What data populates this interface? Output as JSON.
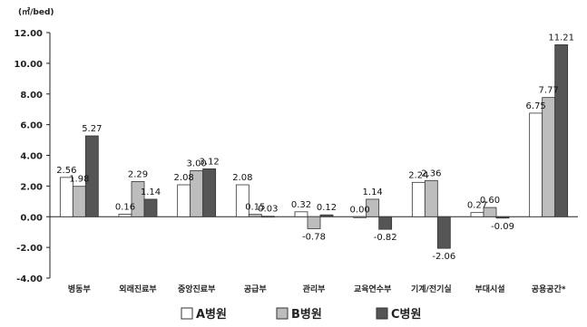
{
  "chart_data": {
    "type": "bar",
    "unit_label": "(㎡/bed)",
    "categories": [
      "병동부",
      "외래진료부",
      "중앙진료부",
      "공급부",
      "관리부",
      "교육연수부",
      "기계/전기실",
      "부대시설",
      "공용공간*"
    ],
    "series": [
      {
        "name": "A병원",
        "color": "#ffffff",
        "values": [
          2.56,
          0.16,
          2.08,
          2.08,
          0.32,
          0.0,
          2.24,
          0.27,
          6.75
        ],
        "labels": [
          "2.56",
          "0.16",
          "2.08",
          "2.08",
          "0.32",
          "0.00",
          "2.24",
          "0.27",
          "6.75"
        ]
      },
      {
        "name": "B병원",
        "color": "#bdbdbd",
        "values": [
          1.98,
          2.29,
          3.0,
          0.15,
          -0.78,
          1.14,
          2.36,
          0.6,
          7.77
        ],
        "labels": [
          "1.98",
          "2.29",
          "3.00",
          "0.15",
          "-0.78",
          "1.14",
          "2.36",
          "0.60",
          "7.77"
        ]
      },
      {
        "name": "C병원",
        "color": "#555555",
        "values": [
          5.27,
          1.14,
          3.12,
          0.03,
          0.12,
          -0.82,
          -2.06,
          -0.09,
          11.21
        ],
        "labels": [
          "5.27",
          "1.14",
          "3.12",
          "0.03",
          "0.12",
          "-0.82",
          "-2.06",
          "-0.09",
          "11.21"
        ]
      }
    ],
    "yticks": [
      "12.00",
      "10.00",
      "8.00",
      "6.00",
      "4.00",
      "2.00",
      "0.00",
      "-2.00",
      "-4.00"
    ],
    "ylim": [
      -4,
      12
    ],
    "grid": false,
    "legend_position": "bottom"
  }
}
